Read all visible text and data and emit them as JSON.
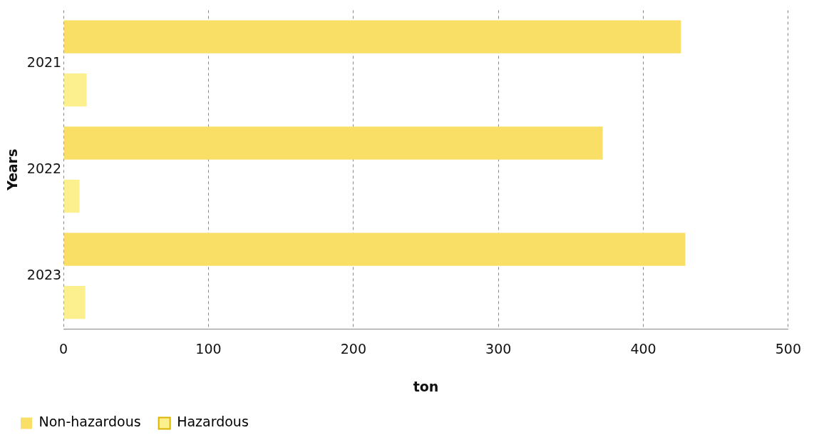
{
  "chart_data": {
    "type": "bar",
    "orientation": "horizontal",
    "xlabel": "ton",
    "ylabel": "Years",
    "categories": [
      "2021",
      "2022",
      "2023"
    ],
    "series": [
      {
        "name": "Non-hazardous",
        "color": "#f9df66",
        "values": [
          426,
          372,
          429
        ]
      },
      {
        "name": "Hazardous",
        "color": "#fcef8e",
        "values": [
          16,
          11,
          15
        ]
      }
    ],
    "xlim": [
      0,
      500
    ],
    "xticks": [
      0,
      100,
      200,
      300,
      400,
      500
    ],
    "grid": "x",
    "legend": "bottom"
  }
}
